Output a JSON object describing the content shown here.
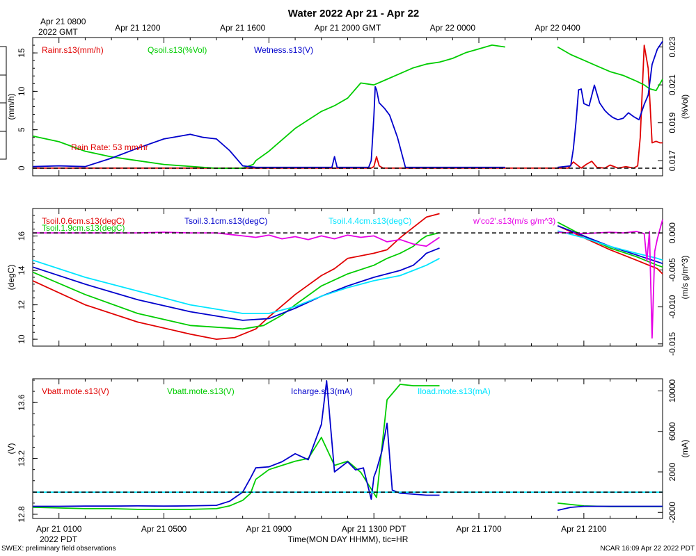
{
  "colors": {
    "red": "#e00000",
    "green": "#00cc00",
    "blue": "#0000cc",
    "cyan": "#00e5ff",
    "magenta": "#e600e6",
    "black": "#000000"
  },
  "header": {
    "title": "Water 2022 Apr 21 - Apr 22",
    "top_axis_corner": [
      "Apr 21 0800",
      "2022 GMT"
    ],
    "top_axis_ticks": [
      {
        "hour": 4,
        "label": "Apr 21 1200"
      },
      {
        "hour": 8,
        "label": "Apr 21 1600"
      },
      {
        "hour": 12,
        "label": "Apr 21 2000 GMT"
      },
      {
        "hour": 16,
        "label": "Apr 22 0000"
      },
      {
        "hour": 20,
        "label": "Apr 22 0400"
      }
    ]
  },
  "footer": {
    "bottom_axis_ticks": [
      {
        "hour": 1,
        "label": "Apr 21 0100"
      },
      {
        "hour": 5,
        "label": "Apr 21 0500"
      },
      {
        "hour": 9,
        "label": "Apr 21 0900"
      },
      {
        "hour": 13,
        "label": "Apr 21 1300 PDT"
      },
      {
        "hour": 17,
        "label": "Apr 21 1700"
      },
      {
        "hour": 21,
        "label": "Apr 21 2100"
      }
    ],
    "year_label": "2022 PDT",
    "xlabel": "Time(MON DAY HHMM), tic=HR",
    "left_note": "SWEX: preliminary field observations",
    "right_note": "NCAR 16:09 Apr 22 2022 PDT"
  },
  "chart_data": [
    {
      "type": "line",
      "panel": "water",
      "x_range_hours_pdt": [
        0,
        24
      ],
      "ylabel_left": "(mm/h)",
      "ylim_left": [
        -1,
        17
      ],
      "yticks_left": [
        0,
        5,
        10,
        15
      ],
      "ylabel_right": "(%Vol)",
      "ylim_right": [
        0.0162,
        0.0235
      ],
      "yticks_right": [
        "0.017",
        "0.019",
        "0.021",
        "0.023"
      ],
      "yticks_right_values": [
        0.017,
        0.019,
        0.021,
        0.023
      ],
      "reference_line_left": 0,
      "annotation": "Rain Rate: 53 mm/hr",
      "series": [
        {
          "name": "Rainr.s13(mm/h)",
          "color": "red",
          "axis": "left",
          "x": [
            0,
            12.9,
            13.0,
            13.1,
            13.2,
            13.35,
            13.5,
            14.0,
            14.5,
            15.0,
            15.5,
            16.0,
            16.5,
            17.0,
            17.5,
            18.0,
            18.5,
            19.0,
            20.0,
            20.4,
            20.6,
            20.9,
            21.1,
            21.3,
            21.5,
            21.8,
            22.0,
            22.3,
            22.6,
            22.9,
            23.05,
            23.15,
            23.3,
            23.45,
            23.6,
            23.75,
            23.9,
            24.0
          ],
          "values": [
            0,
            0,
            0.2,
            1.5,
            0.3,
            0,
            0,
            0,
            0,
            0,
            0,
            0,
            0,
            0,
            0,
            0,
            0,
            0,
            0,
            0,
            0.8,
            0,
            0.5,
            0.9,
            0.1,
            0,
            0.4,
            0,
            0.2,
            0,
            0.3,
            4.0,
            16.0,
            13.0,
            3.3,
            3.5,
            3.3,
            3.3
          ]
        },
        {
          "name": "Qsoil.s13(%Vol)",
          "color": "green",
          "axis": "right",
          "x": [
            0,
            1,
            2,
            3,
            4,
            5,
            6,
            7,
            7.5,
            8,
            8.2,
            8.4,
            8.5,
            9,
            10,
            11,
            11.5,
            12,
            12.5,
            13,
            13.5,
            14,
            14.5,
            15.0,
            15.5,
            16.0,
            16.5,
            17.0,
            17.5,
            18.0,
            19.0,
            19.5,
            20,
            20.5,
            21,
            21.5,
            22,
            22.5,
            23,
            23.3,
            23.5,
            23.75,
            24.0
          ],
          "values": [
            0.0183,
            0.018,
            0.0175,
            0.0172,
            0.017,
            0.0168,
            0.0167,
            0.0166,
            0.0166,
            0.0166,
            0.0167,
            0.0168,
            0.017,
            0.0175,
            0.0187,
            0.0196,
            0.0199,
            0.0203,
            0.0211,
            0.021,
            0.0213,
            0.0216,
            0.0219,
            0.0221,
            0.0222,
            0.0224,
            0.0227,
            0.0229,
            0.0231,
            0.023,
            null,
            null,
            0.023,
            0.0226,
            0.0223,
            0.022,
            0.0217,
            0.0215,
            0.0212,
            0.021,
            0.0208,
            0.0207,
            0.0213
          ]
        },
        {
          "name": "Wetness.s13(V)",
          "color": "blue",
          "axis": "left",
          "x": [
            0,
            1,
            2,
            3,
            4,
            5,
            6,
            6.5,
            7,
            7.5,
            8,
            8.5,
            9,
            10,
            11,
            11.4,
            11.5,
            11.6,
            12,
            12.5,
            12.8,
            12.9,
            13.0,
            13.05,
            13.1,
            13.2,
            13.4,
            13.6,
            13.9,
            14.2,
            14.5,
            15,
            15.5,
            16,
            16.5,
            17.0,
            17.5,
            18.0,
            19.0,
            19.5,
            20,
            20.5,
            20.6,
            20.7,
            20.8,
            20.9,
            21.0,
            21.2,
            21.4,
            21.6,
            21.8,
            21.95,
            22.1,
            22.3,
            22.5,
            22.7,
            22.9,
            23.1,
            23.3,
            23.45,
            23.6,
            23.8,
            24.0
          ],
          "values": [
            0.2,
            0.3,
            0.2,
            1.3,
            2.6,
            3.8,
            4.4,
            4.0,
            3.8,
            2.3,
            0.3,
            0.1,
            0.1,
            0.1,
            0.1,
            0.1,
            1.5,
            0.1,
            0.1,
            0.1,
            0.1,
            1.0,
            6.8,
            10.6,
            10.2,
            8.5,
            7.8,
            6.9,
            4.0,
            0.1,
            0.1,
            0.1,
            0.1,
            0.1,
            0.1,
            0.1,
            0.1,
            0.1,
            null,
            null,
            0.1,
            0.3,
            2.5,
            6.0,
            10.2,
            10.3,
            8.4,
            8.1,
            10.8,
            8.5,
            7.5,
            7.0,
            6.6,
            6.3,
            6.5,
            7.2,
            6.7,
            6.3,
            8.3,
            9.5,
            13.5,
            15.5,
            16.5
          ]
        }
      ]
    },
    {
      "type": "line",
      "panel": "temperature",
      "x_range_hours_pdt": [
        0,
        24
      ],
      "ylabel_left": "(degC)",
      "ylim_left": [
        9.6,
        17.6
      ],
      "yticks_left": [
        10,
        12,
        14,
        16
      ],
      "ylabel_right": "(m/s g/m^3)",
      "ylim_right": [
        -0.0153,
        0.0033
      ],
      "yticks_right": [
        "0.000",
        "-0.005",
        "-0.010",
        "-0.015"
      ],
      "yticks_right_values": [
        0.0,
        -0.005,
        -0.01,
        -0.015
      ],
      "reference_line_right": 0,
      "series": [
        {
          "name": "Tsoil.0.6cm.s13(degC)",
          "color": "red",
          "axis": "left",
          "x": [
            0,
            2,
            4,
            6,
            7,
            7.7,
            8.5,
            9,
            10,
            11,
            11.5,
            12,
            13,
            13.5,
            14,
            14.5,
            15.0,
            15.5,
            16,
            19.5,
            20,
            21,
            22,
            23,
            23.8,
            24.0
          ],
          "values": [
            13.4,
            12.0,
            11.0,
            10.3,
            10.0,
            10.1,
            10.6,
            11.3,
            12.6,
            13.7,
            14.1,
            14.7,
            15.0,
            15.2,
            15.9,
            16.5,
            17.1,
            17.3,
            null,
            null,
            16.6,
            15.9,
            15.2,
            14.6,
            14.1,
            13.8
          ]
        },
        {
          "name": "Tsoil.1.9cm.s13(degC)",
          "color": "green",
          "axis": "left",
          "x": [
            0,
            2,
            4,
            6,
            8,
            8.8,
            9.5,
            10,
            11,
            12,
            13,
            13.5,
            14,
            14.5,
            14.8,
            15.0,
            15.5,
            16,
            19.5,
            20,
            21,
            22,
            23,
            23.8,
            24.0
          ],
          "values": [
            13.9,
            12.6,
            11.5,
            10.8,
            10.6,
            10.8,
            11.4,
            12.0,
            13.1,
            13.8,
            14.3,
            14.7,
            15.0,
            15.4,
            15.8,
            16.0,
            16.2,
            null,
            null,
            16.8,
            16.0,
            15.3,
            14.8,
            14.3,
            14.2
          ]
        },
        {
          "name": "Tsoil.3.1cm.s13(degC)",
          "color": "blue",
          "axis": "left",
          "x": [
            0,
            2,
            4,
            6,
            8,
            9,
            10,
            11,
            12,
            13,
            14,
            14.5,
            14.8,
            15.0,
            15.5,
            16,
            19.5,
            20,
            21,
            22,
            23,
            23.8,
            24.0
          ],
          "values": [
            14.2,
            13.2,
            12.3,
            11.6,
            11.1,
            11.2,
            11.8,
            12.5,
            13.1,
            13.6,
            14.0,
            14.3,
            14.7,
            15.0,
            15.3,
            null,
            null,
            16.6,
            16.0,
            15.4,
            14.9,
            14.5,
            14.4
          ]
        },
        {
          "name": "Tsoil.4.4cm.s13(degC)",
          "color": "cyan",
          "axis": "left",
          "x": [
            0,
            2,
            4,
            6,
            8,
            9,
            10,
            11,
            12,
            13,
            14,
            14.5,
            15.0,
            15.5,
            16,
            19.5,
            20,
            21,
            22,
            23,
            23.8,
            24.0
          ],
          "values": [
            14.6,
            13.6,
            12.8,
            12.0,
            11.5,
            11.5,
            11.9,
            12.5,
            13.0,
            13.4,
            13.7,
            14.0,
            14.3,
            14.7,
            null,
            null,
            16.3,
            15.9,
            15.4,
            15.0,
            14.7,
            14.6
          ]
        },
        {
          "name": "w'co2'.s13(m/s g/m^3)",
          "color": "magenta",
          "axis": "right",
          "x": [
            0,
            1,
            2,
            3,
            4,
            5,
            6,
            7,
            7.5,
            8,
            8.5,
            9,
            9.5,
            10,
            10.5,
            11,
            11.5,
            12,
            12.5,
            13,
            13.5,
            14,
            14.5,
            15,
            15.5,
            16,
            19.5,
            20,
            20.5,
            21,
            21.5,
            22,
            22.5,
            23,
            23.3,
            23.4,
            23.5,
            23.6,
            23.7,
            23.8,
            23.9,
            24.0
          ],
          "values": [
            0.0,
            0.0,
            0.0,
            0.0,
            0.0,
            0.0001,
            0.0,
            0.0,
            -0.0002,
            -0.0004,
            -0.0006,
            -0.0003,
            -0.0008,
            -0.0005,
            -0.0009,
            -0.0004,
            -0.0008,
            -0.0003,
            -0.0006,
            -0.0004,
            -0.0012,
            -0.0009,
            -0.0015,
            -0.0018,
            -0.0006,
            null,
            null,
            0.0001,
            0.0,
            -0.0001,
            0.0,
            0.0001,
            0.0,
            0.0002,
            -0.0001,
            -0.0038,
            0.0002,
            -0.0142,
            -0.0025,
            -0.0008,
            0.0005,
            0.0018
          ]
        }
      ]
    },
    {
      "type": "line",
      "panel": "power",
      "x_range_hours_pdt": [
        0,
        24
      ],
      "ylabel_left": "(V)",
      "ylim_left": [
        12.77,
        13.77
      ],
      "yticks_left": [
        12.8,
        13.2,
        13.6
      ],
      "ylabel_right": "(mA)",
      "ylim_right": [
        -2600,
        11200
      ],
      "yticks_right": [
        "-2000",
        "2000",
        "6000",
        "10000"
      ],
      "yticks_right_values": [
        -2000,
        2000,
        6000,
        10000
      ],
      "reference_line_right": 0,
      "series": [
        {
          "name": "Vbatt.mote.s13(V)",
          "color": "red",
          "axis": "left",
          "x": [],
          "values": []
        },
        {
          "name": "Vbatt.mote.s13(V)",
          "color": "green",
          "axis": "left",
          "x": [
            0,
            1,
            2,
            3,
            4,
            5,
            6,
            7,
            7.5,
            8,
            8.3,
            8.5,
            9,
            9.5,
            10,
            10.5,
            11,
            11.5,
            12,
            12.5,
            13,
            13.1,
            13.5,
            14,
            14.5,
            15.0,
            15.5,
            16,
            19.5,
            20,
            21,
            22,
            23,
            24.0
          ],
          "values": [
            12.85,
            12.845,
            12.84,
            12.84,
            12.835,
            12.835,
            12.835,
            12.84,
            12.86,
            12.9,
            12.95,
            13.05,
            13.12,
            13.15,
            13.18,
            13.2,
            13.35,
            13.15,
            13.18,
            13.1,
            12.95,
            12.92,
            13.62,
            13.73,
            13.72,
            13.72,
            13.72,
            null,
            null,
            12.88,
            12.86,
            12.855,
            12.855,
            12.855
          ]
        },
        {
          "name": "Icharge.s13(mA)",
          "color": "blue",
          "axis": "right",
          "x": [
            0,
            1,
            2,
            3,
            4,
            5,
            6,
            7,
            7.5,
            8,
            8.3,
            8.5,
            9,
            9.5,
            10,
            10.5,
            11,
            11.2,
            11.5,
            12,
            12.3,
            12.6,
            12.9,
            13.0,
            13.1,
            13.3,
            13.5,
            13.7,
            14.0,
            14.5,
            15.0,
            15.5,
            16,
            19.5,
            20.0,
            20.5,
            21,
            22,
            23,
            24.0
          ],
          "values": [
            -1400,
            -1400,
            -1380,
            -1380,
            -1360,
            -1380,
            -1360,
            -1300,
            -900,
            0,
            1400,
            2400,
            2500,
            3000,
            3800,
            3200,
            6700,
            11000,
            2000,
            3000,
            2200,
            2400,
            -700,
            1500,
            2200,
            4000,
            6800,
            200,
            -100,
            -200,
            -300,
            -300,
            null,
            null,
            -1800,
            -1500,
            -1400,
            -1400,
            -1400,
            -1400
          ]
        },
        {
          "name": "Iload.mote.s13(mA)",
          "color": "cyan",
          "axis": "right",
          "x": [
            0,
            24
          ],
          "values": [
            0,
            0
          ]
        }
      ]
    }
  ],
  "legends": [
    [
      "Rainr.s13(mm/h)",
      "Qsoil.s13(%Vol)",
      "Wetness.s13(V)"
    ],
    [
      "Tsoil.0.6cm.s13(degC)",
      "Tsoil.1.9cm.s13(degC)",
      "Tsoil.3.1cm.s13(degC)",
      "Tsoil.4.4cm.s13(degC)",
      "w'co2'.s13(m/s g/m^3)"
    ],
    [
      "Vbatt.mote.s13(V)",
      "Vbatt.mote.s13(V)",
      "Icharge.s13(mA)",
      "Iload.mote.s13(mA)"
    ]
  ]
}
